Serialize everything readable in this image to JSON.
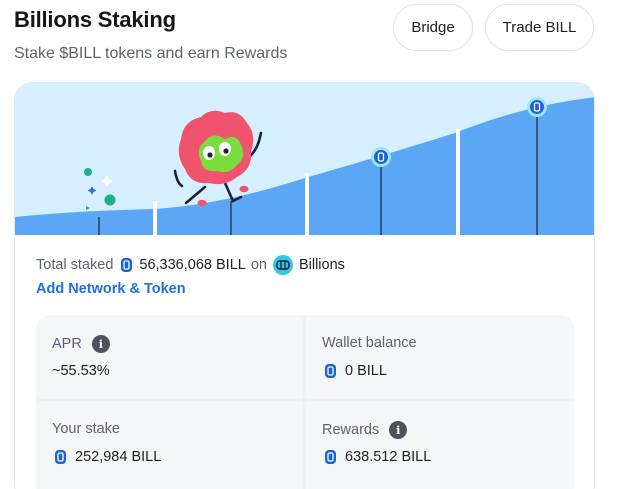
{
  "header": {
    "title": "Billions Staking",
    "subtitle": "Stake $BILL tokens and earn Rewards"
  },
  "actions": {
    "bridge_label": "Bridge",
    "trade_label": "Trade BILL"
  },
  "summary": {
    "total_label": "Total staked",
    "total_value": "56,336,068 BILL",
    "on_label": "on",
    "network_name": "Billions",
    "add_network_label": "Add Network & Token"
  },
  "stats": {
    "apr_label": "APR",
    "apr_value": "~55.53%",
    "wallet_label": "Wallet balance",
    "wallet_value": "0 BILL",
    "stake_label": "Your stake",
    "stake_value": "252,984 BILL",
    "rewards_label": "Rewards",
    "rewards_value": "638.512 BILL"
  },
  "icons": {
    "token": "bill-coin-icon",
    "network": "billions-network-icon",
    "info": "info-icon"
  },
  "colors": {
    "accent": "#1f6fe0",
    "hero_sky": "#d6efff",
    "hero_hill": "#5ba6f5",
    "mascot_pink": "#f0536e",
    "mascot_green": "#7bdc3e"
  }
}
